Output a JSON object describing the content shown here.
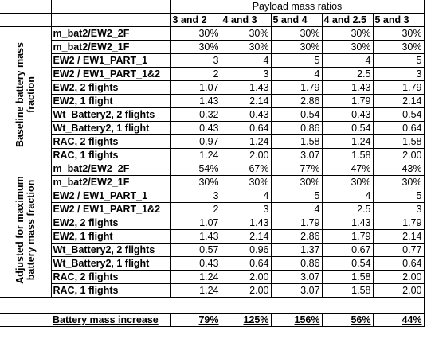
{
  "header": {
    "title": "Payload mass ratios",
    "columns": [
      "3 and 2",
      "4 and 3",
      "5 and 4",
      "4 and 2.5",
      "5 and 3"
    ]
  },
  "sections": [
    {
      "title": "Baseline battery mass fraction",
      "rows": [
        {
          "label": "m_bat2/EW2_2F",
          "values": [
            "30%",
            "30%",
            "30%",
            "30%",
            "30%"
          ]
        },
        {
          "label": "m_bat2/EW2_1F",
          "values": [
            "30%",
            "30%",
            "30%",
            "30%",
            "30%"
          ]
        },
        {
          "label": "EW2 / EW1_PART_1",
          "values": [
            "3",
            "4",
            "5",
            "4",
            "5"
          ]
        },
        {
          "label": "EW2 / EW1_PART_1&2",
          "values": [
            "2",
            "3",
            "4",
            "2.5",
            "3"
          ]
        },
        {
          "label": "EW2, 2 flights",
          "values": [
            "1.07",
            "1.43",
            "1.79",
            "1.43",
            "1.79"
          ]
        },
        {
          "label": "EW2, 1 flight",
          "values": [
            "1.43",
            "2.14",
            "2.86",
            "1.79",
            "2.14"
          ]
        },
        {
          "label": "Wt_Battery2, 2 flights",
          "values": [
            "0.32",
            "0.43",
            "0.54",
            "0.43",
            "0.54"
          ]
        },
        {
          "label": "Wt_Battery2, 1 flight",
          "values": [
            "0.43",
            "0.64",
            "0.86",
            "0.54",
            "0.64"
          ]
        },
        {
          "label": "RAC, 2 flights",
          "values": [
            "0.97",
            "1.24",
            "1.58",
            "1.24",
            "1.58"
          ]
        },
        {
          "label": "RAC, 1 flights",
          "values": [
            "1.24",
            "2.00",
            "3.07",
            "1.58",
            "2.00"
          ]
        }
      ]
    },
    {
      "title": "Adjusted for maximum battery mass fraction",
      "rows": [
        {
          "label": "m_bat2/EW2_2F",
          "values": [
            "54%",
            "67%",
            "77%",
            "47%",
            "43%"
          ]
        },
        {
          "label": "m_bat2/EW2_1F",
          "values": [
            "30%",
            "30%",
            "30%",
            "30%",
            "30%"
          ]
        },
        {
          "label": "EW2 / EW1_PART_1",
          "values": [
            "3",
            "4",
            "5",
            "4",
            "5"
          ]
        },
        {
          "label": "EW2 / EW1_PART_1&2",
          "values": [
            "2",
            "3",
            "4",
            "2.5",
            "3"
          ]
        },
        {
          "label": "EW2, 2 flights",
          "values": [
            "1.07",
            "1.43",
            "1.79",
            "1.43",
            "1.79"
          ]
        },
        {
          "label": "EW2, 1 flight",
          "values": [
            "1.43",
            "2.14",
            "2.86",
            "1.79",
            "2.14"
          ]
        },
        {
          "label": "Wt_Battery2, 2 flights",
          "values": [
            "0.57",
            "0.96",
            "1.37",
            "0.67",
            "0.77"
          ]
        },
        {
          "label": "Wt_Battery2, 1 flight",
          "values": [
            "0.43",
            "0.64",
            "0.86",
            "0.54",
            "0.64"
          ]
        },
        {
          "label": "RAC, 2 flights",
          "values": [
            "1.24",
            "2.00",
            "3.07",
            "1.58",
            "2.00"
          ]
        },
        {
          "label": "RAC, 1 flights",
          "values": [
            "1.24",
            "2.00",
            "3.07",
            "1.58",
            "2.00"
          ]
        }
      ]
    }
  ],
  "summary": {
    "label": "Battery mass increase",
    "values": [
      "79%",
      "125%",
      "156%",
      "56%",
      "44%"
    ]
  }
}
